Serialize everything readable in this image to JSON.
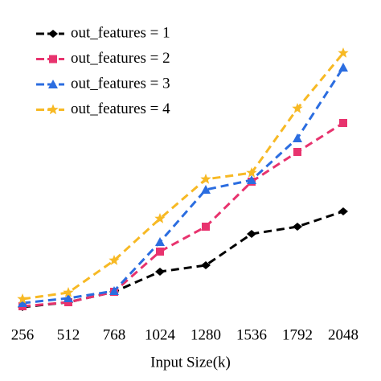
{
  "chart_data": {
    "type": "line",
    "xlabel": "Input Size(k)",
    "x": [
      256,
      512,
      768,
      1024,
      1280,
      1536,
      1792,
      2048
    ],
    "xlim": [
      256,
      2048
    ],
    "xticks": [
      256,
      512,
      768,
      1024,
      1280,
      1536,
      1792,
      2048
    ],
    "ylim": [
      0,
      330
    ],
    "legend": "upper left",
    "series": [
      {
        "name": "out_features = 1",
        "color": "#000000",
        "marker": "diamond",
        "values": [
          8,
          14,
          27,
          52,
          60,
          99,
          108,
          127
        ]
      },
      {
        "name": "out_features = 2",
        "color": "#e8336e",
        "marker": "square",
        "values": [
          9,
          14,
          27,
          77,
          108,
          164,
          201,
          237
        ]
      },
      {
        "name": "out_features = 3",
        "color": "#2b6de0",
        "marker": "triangle",
        "values": [
          13,
          19,
          28,
          89,
          154,
          166,
          218,
          306
        ]
      },
      {
        "name": "out_features = 4",
        "color": "#f7b924",
        "marker": "star",
        "values": [
          18,
          26,
          66,
          118,
          167,
          175,
          255,
          324
        ]
      }
    ]
  }
}
